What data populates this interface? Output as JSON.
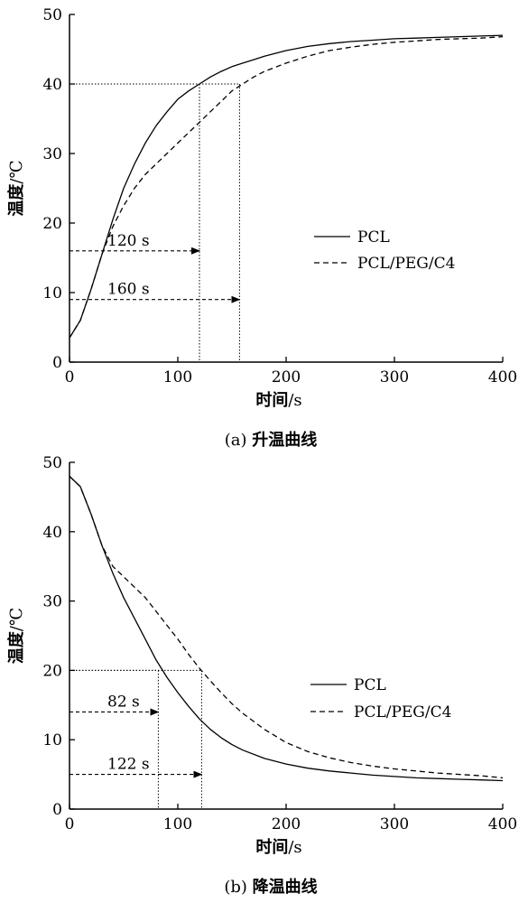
{
  "chart_data": [
    {
      "type": "line",
      "caption_prefix": "(a)",
      "caption_text": "升温曲线",
      "xlabel": "时间",
      "xunit": "/s",
      "ylabel": "温度",
      "yunit": "/℃",
      "xlim": [
        0,
        400
      ],
      "ylim": [
        0,
        50
      ],
      "xticks": [
        0,
        100,
        200,
        300,
        400
      ],
      "yticks": [
        0,
        10,
        20,
        30,
        40,
        50
      ],
      "grid": false,
      "legend_position": "center-right",
      "series": [
        {
          "name": "PCL",
          "style": "solid",
          "x": [
            0,
            10,
            20,
            30,
            40,
            50,
            60,
            70,
            80,
            90,
            100,
            110,
            120,
            130,
            140,
            150,
            160,
            170,
            180,
            200,
            220,
            240,
            260,
            280,
            300,
            320,
            340,
            360,
            380,
            400
          ],
          "y": [
            3.5,
            6,
            10.5,
            15.5,
            20.5,
            25,
            28.5,
            31.5,
            34,
            36,
            37.8,
            39,
            40,
            41,
            41.8,
            42.5,
            43,
            43.5,
            44,
            44.8,
            45.4,
            45.8,
            46.1,
            46.3,
            46.5,
            46.6,
            46.7,
            46.8,
            46.9,
            47
          ]
        },
        {
          "name": "PCL/PEG/C4",
          "style": "dashed",
          "x": [
            0,
            10,
            20,
            30,
            40,
            50,
            60,
            70,
            80,
            90,
            100,
            110,
            120,
            130,
            140,
            150,
            160,
            170,
            180,
            200,
            220,
            240,
            260,
            280,
            300,
            320,
            340,
            360,
            380,
            400
          ],
          "y": [
            3.5,
            6,
            10.5,
            15.5,
            19.5,
            22.5,
            25,
            27,
            28.5,
            30,
            31.5,
            33,
            34.5,
            36,
            37.5,
            39,
            40,
            41,
            41.8,
            43,
            44,
            44.8,
            45.3,
            45.7,
            46,
            46.2,
            46.4,
            46.5,
            46.6,
            46.8
          ]
        }
      ],
      "annotations": [
        {
          "label": "120 s",
          "x": 120,
          "y": 40,
          "arrow_y": 16
        },
        {
          "label": "160 s",
          "x": 157,
          "y": 40,
          "arrow_y": 9
        }
      ]
    },
    {
      "type": "line",
      "caption_prefix": "(b)",
      "caption_text": "降温曲线",
      "xlabel": "时间",
      "xunit": "/s",
      "ylabel": "温度",
      "yunit": "/℃",
      "xlim": [
        0,
        400
      ],
      "ylim": [
        0,
        50
      ],
      "xticks": [
        0,
        100,
        200,
        300,
        400
      ],
      "yticks": [
        0,
        10,
        20,
        30,
        40,
        50
      ],
      "grid": false,
      "legend_position": "center-right",
      "series": [
        {
          "name": "PCL",
          "style": "solid",
          "x": [
            0,
            10,
            20,
            30,
            40,
            50,
            60,
            70,
            80,
            90,
            100,
            110,
            120,
            130,
            140,
            150,
            160,
            180,
            200,
            220,
            240,
            260,
            280,
            300,
            320,
            340,
            360,
            380,
            400
          ],
          "y": [
            48,
            46.5,
            42.5,
            38,
            34,
            30.5,
            27.5,
            24.5,
            21.5,
            19,
            16.8,
            14.8,
            13,
            11.5,
            10.3,
            9.3,
            8.5,
            7.3,
            6.5,
            5.9,
            5.5,
            5.2,
            4.9,
            4.7,
            4.5,
            4.4,
            4.3,
            4.2,
            4.1
          ]
        },
        {
          "name": "PCL/PEG/C4",
          "style": "dashed",
          "x": [
            0,
            10,
            20,
            30,
            40,
            50,
            60,
            70,
            80,
            90,
            100,
            110,
            120,
            130,
            140,
            150,
            160,
            180,
            200,
            220,
            240,
            260,
            280,
            300,
            320,
            340,
            360,
            380,
            400
          ],
          "y": [
            48,
            46.5,
            42.5,
            38,
            35,
            33.5,
            32,
            30.5,
            28.5,
            26.5,
            24.5,
            22.3,
            20.3,
            18.5,
            16.8,
            15.2,
            13.8,
            11.5,
            9.6,
            8.3,
            7.4,
            6.7,
            6.2,
            5.8,
            5.5,
            5.2,
            5,
            4.8,
            4.5
          ]
        }
      ],
      "annotations": [
        {
          "label": "82 s",
          "x": 82,
          "y": 20,
          "arrow_y": 14
        },
        {
          "label": "122 s",
          "x": 122,
          "y": 20,
          "arrow_y": 5
        }
      ]
    }
  ]
}
